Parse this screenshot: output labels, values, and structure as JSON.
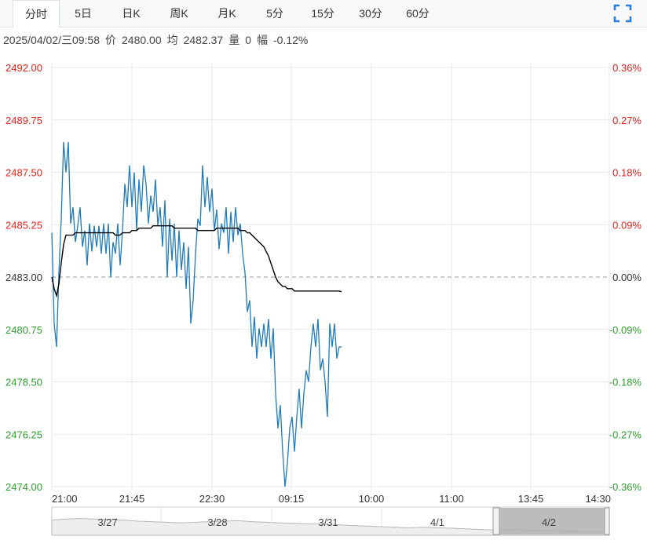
{
  "tabs": [
    {
      "label": "分时",
      "active": true
    },
    {
      "label": "5日",
      "active": false
    },
    {
      "label": "日K",
      "active": false
    },
    {
      "label": "周K",
      "active": false
    },
    {
      "label": "月K",
      "active": false
    },
    {
      "label": "5分",
      "active": false
    },
    {
      "label": "15分",
      "active": false
    },
    {
      "label": "30分",
      "active": false
    },
    {
      "label": "60分",
      "active": false
    }
  ],
  "fullscreen_icon": "fullscreen-icon",
  "info": {
    "datetime": "2025/04/02/三09:58",
    "price_label": "价",
    "price": "2480.00",
    "avg_label": "均",
    "avg": "2482.37",
    "volume_label": "量",
    "volume": "0",
    "change_label": "幅",
    "change": "-0.12%"
  },
  "colors": {
    "up": "#e3231c",
    "down": "#2fa12f",
    "price_line": "#1f7bbf",
    "avg_line": "#000000",
    "grid": "#e8eaee",
    "base_line": "#999999",
    "navigator_fill": "#b0b0b0"
  },
  "chart_data": {
    "type": "line",
    "base_price": 2483.0,
    "ylim": [
      2474.0,
      2492.0
    ],
    "price_ticks": [
      "2492.00",
      "2489.75",
      "2487.50",
      "2485.25",
      "2483.00",
      "2480.75",
      "2478.50",
      "2476.25",
      "2474.00"
    ],
    "pct_ticks": [
      "0.36%",
      "0.27%",
      "0.18%",
      "0.09%",
      "0.00%",
      "-0.09%",
      "-0.18%",
      "-0.27%",
      "-0.36%"
    ],
    "x_ticks": [
      "21:00",
      "21:45",
      "22:30",
      "09:15",
      "10:00",
      "11:00",
      "13:45",
      "14:30"
    ],
    "series": [
      {
        "key": "price",
        "values": [
          2484.9,
          2481.0,
          2480.0,
          2483.2,
          2485.5,
          2488.8,
          2487.5,
          2488.8,
          2485.3,
          2486.0,
          2484.5,
          2485.2,
          2486.0,
          2484.3,
          2485.0,
          2483.5,
          2485.3,
          2484.1,
          2485.2,
          2484.3,
          2485.2,
          2484.0,
          2485.3,
          2484.0,
          2485.3,
          2483.0,
          2484.5,
          2484.0,
          2485.3,
          2483.5,
          2485.0,
          2487.0,
          2486.0,
          2487.8,
          2486.0,
          2487.5,
          2485.0,
          2487.2,
          2485.8,
          2487.8,
          2487.0,
          2485.3,
          2486.5,
          2485.8,
          2487.2,
          2485.2,
          2486.0,
          2484.3,
          2486.3,
          2483.0,
          2485.5,
          2483.7,
          2485.3,
          2483.0,
          2485.0,
          2483.3,
          2484.5,
          2482.5,
          2484.3,
          2481.0,
          2482.0,
          2484.0,
          2485.5,
          2485.2,
          2487.8,
          2486.0,
          2487.3,
          2485.8,
          2486.8,
          2485.0,
          2485.9,
          2484.2,
          2485.3,
          2484.9,
          2486.0,
          2484.0,
          2485.8,
          2484.5,
          2486.0,
          2484.8,
          2485.3,
          2484.0,
          2483.2,
          2481.5,
          2482.0,
          2480.0,
          2481.3,
          2479.5,
          2480.8,
          2480.0,
          2481.0,
          2480.0,
          2481.2,
          2479.5,
          2480.8,
          2478.0,
          2476.5,
          2477.5,
          2475.5,
          2474.0,
          2475.0,
          2476.5,
          2477.0,
          2475.5,
          2477.0,
          2478.2,
          2476.5,
          2478.0,
          2479.0,
          2478.5,
          2480.0,
          2481.0,
          2480.0,
          2481.2,
          2479.0,
          2479.5,
          2478.5,
          2477.0,
          2481.0,
          2480.0,
          2481.0,
          2479.5,
          2480.0,
          2480.0
        ]
      },
      {
        "key": "avg",
        "values": [
          2483.0,
          2482.5,
          2482.2,
          2482.7,
          2483.6,
          2484.4,
          2484.8,
          2484.8,
          2484.8,
          2484.8,
          2484.9,
          2484.9,
          2484.9,
          2484.9,
          2484.9,
          2484.9,
          2484.9,
          2484.9,
          2484.9,
          2484.9,
          2484.9,
          2484.9,
          2484.9,
          2484.9,
          2484.9,
          2484.9,
          2484.9,
          2484.8,
          2484.8,
          2484.8,
          2484.9,
          2484.9,
          2484.9,
          2484.9,
          2485.0,
          2485.0,
          2485.0,
          2485.1,
          2485.1,
          2485.1,
          2485.1,
          2485.1,
          2485.1,
          2485.2,
          2485.2,
          2485.2,
          2485.2,
          2485.2,
          2485.2,
          2485.2,
          2485.2,
          2485.2,
          2485.1,
          2485.1,
          2485.1,
          2485.1,
          2485.1,
          2485.1,
          2485.1,
          2485.1,
          2485.1,
          2485.1,
          2485.0,
          2485.0,
          2485.0,
          2485.0,
          2485.0,
          2485.0,
          2485.0,
          2485.0,
          2485.1,
          2485.1,
          2485.1,
          2485.1,
          2485.1,
          2485.1,
          2485.1,
          2485.1,
          2485.1,
          2485.1,
          2485.0,
          2485.0,
          2485.0,
          2484.9,
          2484.9,
          2484.8,
          2484.7,
          2484.6,
          2484.5,
          2484.4,
          2484.3,
          2484.1,
          2483.9,
          2483.6,
          2483.3,
          2483.0,
          2482.8,
          2482.7,
          2482.6,
          2482.6,
          2482.5,
          2482.5,
          2482.5,
          2482.4,
          2482.4,
          2482.4,
          2482.4,
          2482.4,
          2482.4,
          2482.4,
          2482.4,
          2482.4,
          2482.4,
          2482.4,
          2482.4,
          2482.4,
          2482.4,
          2482.4,
          2482.4,
          2482.4,
          2482.4,
          2482.4,
          2482.4,
          2482.37
        ]
      }
    ],
    "navigator_labels": [
      "3/27",
      "3/28",
      "3/31",
      "4/1",
      "4/2"
    ],
    "navigator_trend": [
      0.55,
      0.6,
      0.62,
      0.6,
      0.58,
      0.55,
      0.5,
      0.48,
      0.45,
      0.42,
      0.45,
      0.48,
      0.5,
      0.52,
      0.48,
      0.45,
      0.42,
      0.4,
      0.38,
      0.36,
      0.34,
      0.3,
      0.28,
      0.25,
      0.22,
      0.2,
      0.22,
      0.2,
      0.18,
      0.15,
      0.12,
      0.1,
      0.12,
      0.1,
      0.08,
      0.06,
      0.05,
      0.04,
      0.03,
      0.02
    ],
    "grid": true,
    "legend": "none"
  }
}
